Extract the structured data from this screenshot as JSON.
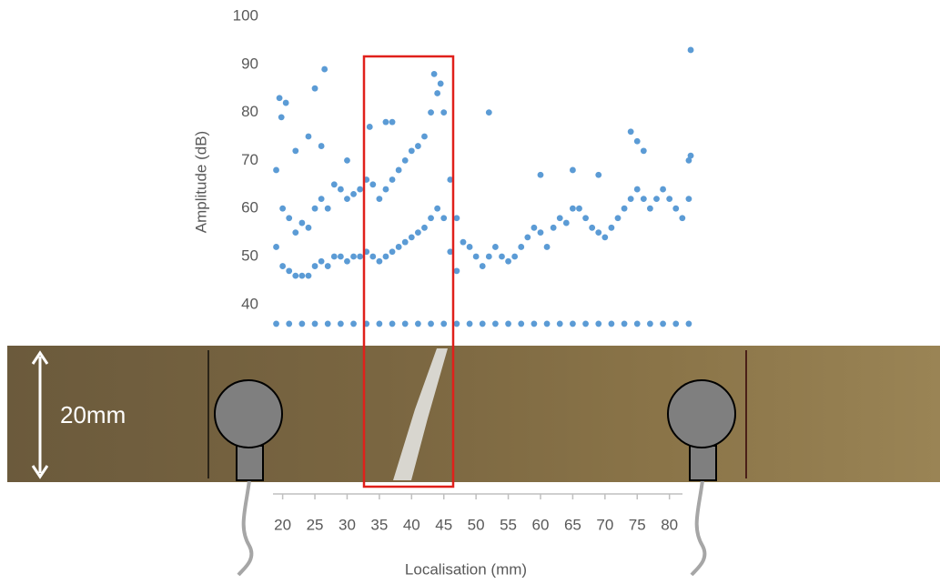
{
  "chart_data": {
    "type": "scatter",
    "xlabel": "Localisation (mm)",
    "ylabel": "Amplitude (dB)",
    "annotation": "20mm",
    "xlim": [
      18.5,
      84
    ],
    "ylim": [
      30,
      100
    ],
    "xticks": [
      20,
      25,
      30,
      35,
      40,
      45,
      50,
      55,
      60,
      65,
      70,
      75,
      80
    ],
    "yticks": [
      40,
      50,
      60,
      70,
      80,
      90,
      100
    ],
    "series": [
      {
        "color": "#5b9bd5",
        "x": [
          19,
          20,
          21,
          22,
          23,
          24,
          25,
          26,
          27,
          28,
          29,
          30,
          31,
          32,
          33,
          34,
          35,
          36,
          37,
          38,
          39,
          40,
          41,
          42,
          43,
          44,
          45,
          46,
          47,
          48,
          49,
          50,
          51,
          52,
          53,
          54,
          55,
          56,
          57,
          58,
          59,
          60,
          61,
          62,
          63,
          64,
          65,
          66,
          67,
          68,
          69,
          70,
          71,
          72,
          73,
          74,
          75,
          76,
          77,
          78,
          79,
          80,
          81,
          82,
          83,
          19,
          21,
          23,
          25,
          27,
          29,
          31,
          33,
          35,
          37,
          39,
          41,
          43,
          45,
          47,
          49,
          51,
          53,
          55,
          57,
          59,
          61,
          63,
          65,
          67,
          69,
          71,
          73,
          75,
          77,
          79,
          81,
          83,
          19,
          20,
          21,
          22,
          23,
          24,
          25,
          26,
          27,
          28,
          29,
          30,
          31,
          32,
          33,
          34,
          35,
          36,
          37,
          38,
          39,
          40,
          41,
          42,
          43,
          44,
          45,
          46,
          47,
          19.5,
          19.8,
          20.5,
          25,
          26.5,
          33.5,
          36,
          37,
          43.5,
          44.5,
          52,
          83.3,
          83.3,
          83,
          74,
          75,
          76,
          69,
          60,
          65,
          30,
          22,
          24,
          26
        ],
        "values": [
          68,
          60,
          58,
          55,
          57,
          56,
          60,
          62,
          60,
          65,
          64,
          62,
          63,
          64,
          66,
          65,
          62,
          64,
          66,
          68,
          70,
          72,
          73,
          75,
          80,
          84,
          80,
          66,
          58,
          53,
          52,
          50,
          48,
          50,
          52,
          50,
          49,
          50,
          52,
          54,
          56,
          55,
          52,
          56,
          58,
          57,
          60,
          60,
          58,
          56,
          55,
          54,
          56,
          58,
          60,
          62,
          64,
          62,
          60,
          62,
          64,
          62,
          60,
          58,
          62,
          36,
          36,
          36,
          36,
          36,
          36,
          36,
          36,
          36,
          36,
          36,
          36,
          36,
          36,
          36,
          36,
          36,
          36,
          36,
          36,
          36,
          36,
          36,
          36,
          36,
          36,
          36,
          36,
          36,
          36,
          36,
          36,
          36,
          52,
          48,
          47,
          46,
          46,
          46,
          48,
          49,
          48,
          50,
          50,
          49,
          50,
          50,
          51,
          50,
          49,
          50,
          51,
          52,
          53,
          54,
          55,
          56,
          58,
          60,
          58,
          51,
          47,
          83,
          79,
          82,
          85,
          89,
          77,
          78,
          78,
          88,
          86,
          80,
          93,
          71,
          70,
          76,
          74,
          72,
          67,
          67,
          68,
          70,
          72,
          75,
          73
        ]
      }
    ]
  }
}
